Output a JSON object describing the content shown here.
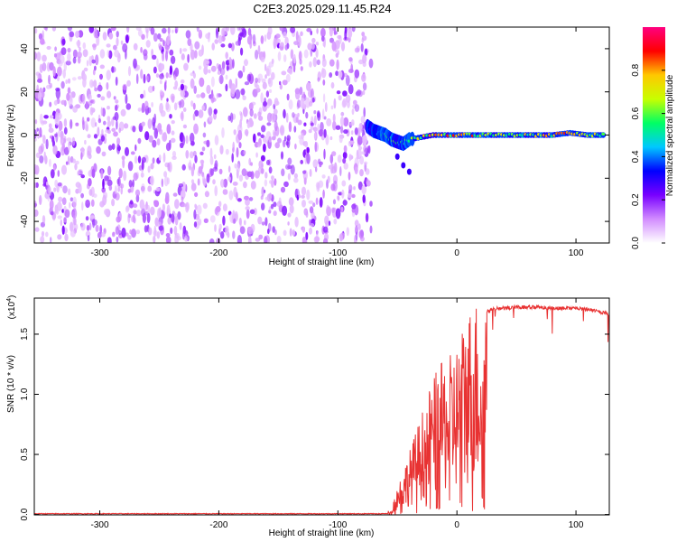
{
  "title": "C2E3.2025.029.11.45.R24",
  "chart_data": [
    {
      "type": "heatmap",
      "title": "C2E3.2025.029.11.45.R24",
      "xlabel": "Height of straight line (km)",
      "ylabel": "Frequency (Hz)",
      "xlim": [
        -355,
        128
      ],
      "ylim": [
        -50,
        50
      ],
      "xticks": [
        "-300",
        "-200",
        "-100",
        "0",
        "100"
      ],
      "yticks": [
        "-40",
        "-20",
        "0",
        "20",
        "40"
      ],
      "noise_region_x": [
        -355,
        -72
      ],
      "signal_track": [
        {
          "x": -75,
          "freq": 4,
          "amp": 0.25
        },
        {
          "x": -70,
          "freq": 2,
          "amp": 0.35
        },
        {
          "x": -65,
          "freq": 1,
          "amp": 0.45
        },
        {
          "x": -60,
          "freq": 0,
          "amp": 0.55
        },
        {
          "x": -55,
          "freq": -2,
          "amp": 0.6
        },
        {
          "x": -50,
          "freq": -3,
          "amp": 0.65
        },
        {
          "x": -45,
          "freq": -4,
          "amp": 0.55
        },
        {
          "x": -40,
          "freq": -2,
          "amp": 0.6
        },
        {
          "x": -30,
          "freq": -1,
          "amp": 0.7
        },
        {
          "x": -20,
          "freq": 0,
          "amp": 0.8
        },
        {
          "x": -10,
          "freq": 0,
          "amp": 0.85
        },
        {
          "x": 0,
          "freq": 0,
          "amp": 0.9
        },
        {
          "x": 20,
          "freq": 0,
          "amp": 0.75
        },
        {
          "x": 40,
          "freq": 0,
          "amp": 0.7
        },
        {
          "x": 60,
          "freq": 0,
          "amp": 0.72
        },
        {
          "x": 80,
          "freq": 0,
          "amp": 0.75
        },
        {
          "x": 95,
          "freq": 1,
          "amp": 0.85
        },
        {
          "x": 110,
          "freq": 0,
          "amp": 0.7
        },
        {
          "x": 125,
          "freq": 0,
          "amp": 0.65
        }
      ],
      "trailing_feature": [
        {
          "x": -50,
          "freq": -10
        },
        {
          "x": -45,
          "freq": -14
        },
        {
          "x": -40,
          "freq": -17
        }
      ],
      "colorbar": {
        "label": "Normalized spectral amplitude",
        "range": [
          0,
          1
        ],
        "ticks": [
          "0.0",
          "0.2",
          "0.4",
          "0.6",
          "0.8"
        ],
        "colors": [
          "#ffffff",
          "#d28cff",
          "#7800ff",
          "#0000ff",
          "#00c8ff",
          "#00ff64",
          "#c8ff00",
          "#ffc800",
          "#ff0000",
          "#ff0080"
        ]
      }
    },
    {
      "type": "line",
      "xlabel": "Height of straight line (km)",
      "ylabel": "SNR (10 * v/v)",
      "scale_label": "(x10",
      "scale_exponent": "4",
      "scale_suffix": ")",
      "xlim": [
        -355,
        128
      ],
      "ylim": [
        -0.003,
        1.8
      ],
      "xticks": [
        "-300",
        "-200",
        "-100",
        "0",
        "100"
      ],
      "yticks": [
        "0.0",
        "0.5",
        "1.0",
        "1.5"
      ],
      "line_color": "#e83232",
      "series": [
        {
          "x": [
            -355,
            -300,
            -200,
            -100,
            -60,
            -55,
            -50,
            -45,
            -40,
            -35,
            -30,
            -25,
            -20,
            -15,
            -10,
            -5,
            0,
            5,
            10,
            15,
            20,
            25,
            30,
            35,
            40,
            50,
            60,
            70,
            80,
            90,
            100,
            110,
            120,
            128
          ],
          "y": [
            0.0,
            0.0,
            0.0,
            0.0,
            0.0,
            0.05,
            0.22,
            0.35,
            0.48,
            0.62,
            0.76,
            0.92,
            1.04,
            1.12,
            1.18,
            1.22,
            1.3,
            1.45,
            1.58,
            1.64,
            1.66,
            1.7,
            1.72,
            1.73,
            1.73,
            1.74,
            1.74,
            1.74,
            1.73,
            1.73,
            1.73,
            1.72,
            1.7,
            1.68
          ]
        }
      ]
    }
  ]
}
